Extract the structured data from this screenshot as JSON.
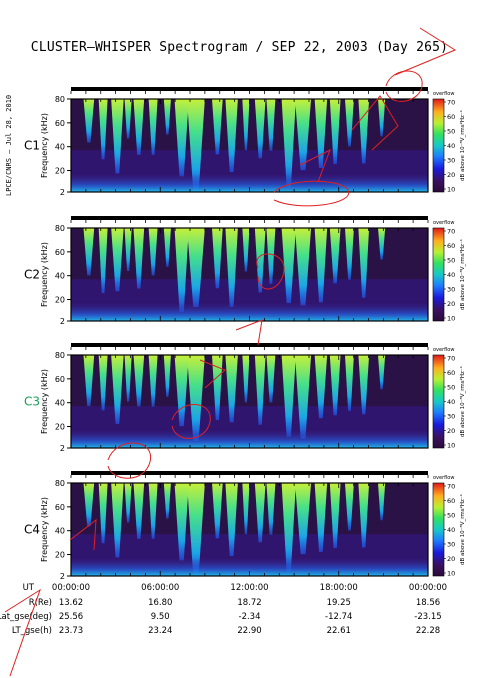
{
  "title": "CLUSTER–WHISPER Spectrogram / SEP 22, 2003 (Day 265)",
  "side_credit": "LPCE/CNRS – Jul 28, 2010",
  "colors": {
    "title": "#000000",
    "c3_label": "#16a05a",
    "overlay_scribble": "#e02020",
    "background_plot": "#2a1246"
  },
  "chart_data": [
    {
      "type": "heatmap",
      "panel_label": "C1",
      "ylabel": "Frequency (kHz)",
      "yticks": [
        2,
        20,
        40,
        60,
        80
      ],
      "ylim": [
        2,
        80
      ],
      "colorbar": {
        "label": "dB above 10⁻⁸V_rms²Hz⁻¹",
        "ticks": [
          10,
          20,
          30,
          40,
          50,
          60,
          70
        ],
        "range": [
          10,
          70
        ],
        "top_label": "overflow"
      }
    },
    {
      "type": "heatmap",
      "panel_label": "C2",
      "ylabel": "Frequency (kHz)",
      "yticks": [
        2,
        20,
        40,
        60,
        80
      ],
      "ylim": [
        2,
        80
      ],
      "colorbar": {
        "label": "dB above 10⁻⁸V_rms²Hz⁻¹",
        "ticks": [
          10,
          20,
          30,
          40,
          50,
          60,
          70
        ],
        "range": [
          10,
          70
        ],
        "top_label": "overflow"
      }
    },
    {
      "type": "heatmap",
      "panel_label": "C3",
      "ylabel": "Frequency (kHz)",
      "yticks": [
        2,
        20,
        40,
        60,
        80
      ],
      "ylim": [
        2,
        80
      ],
      "colorbar": {
        "label": "dB above 10⁻⁸V_rms²Hz⁻¹",
        "ticks": [
          10,
          20,
          30,
          40,
          50,
          60,
          70
        ],
        "range": [
          10,
          70
        ],
        "top_label": "overflow"
      }
    },
    {
      "type": "heatmap",
      "panel_label": "C4",
      "ylabel": "Frequency (kHz)",
      "yticks": [
        2,
        20,
        40,
        60,
        80
      ],
      "ylim": [
        2,
        80
      ],
      "colorbar": {
        "label": "dB above 10⁻⁸V_rms²Hz⁻¹",
        "ticks": [
          10,
          20,
          30,
          40,
          50,
          60,
          70
        ],
        "range": [
          10,
          70
        ],
        "top_label": "overflow"
      }
    }
  ],
  "xaxis": {
    "ticks": [
      "00:00:00",
      "06:00:00",
      "12:00:00",
      "18:00:00",
      "00:00:00"
    ]
  },
  "ephemeris": {
    "rows": [
      {
        "label": "UT",
        "values": [
          "00:00:00",
          "06:00:00",
          "12:00:00",
          "18:00:00",
          "00:00:00"
        ]
      },
      {
        "label": "R(Re)",
        "values": [
          "13.62",
          "16.80",
          "18.72",
          "19.25",
          "18.56"
        ]
      },
      {
        "label": "Lat_gse(deg)",
        "values": [
          "25.56",
          "9.50",
          "-2.34",
          "-12.74",
          "-23.15"
        ]
      },
      {
        "label": "LT_gse(h)",
        "values": [
          "23.73",
          "23.24",
          "22.90",
          "22.61",
          "22.28"
        ]
      }
    ]
  }
}
